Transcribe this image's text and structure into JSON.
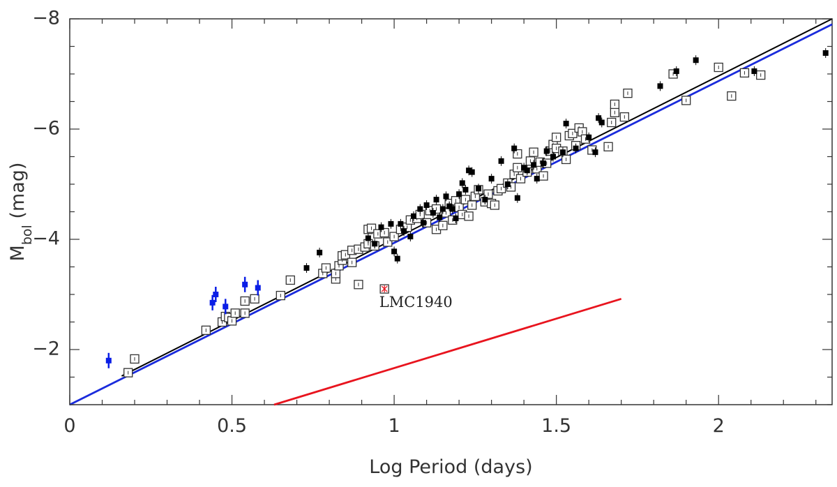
{
  "chart_data": {
    "type": "scatter",
    "title": "",
    "xlabel": "Log Period (days)",
    "ylabel": {
      "main": "M",
      "sub": "bol",
      "unit": " (mag)"
    },
    "xlim": [
      0,
      2.35
    ],
    "ylim": [
      -1,
      -8
    ],
    "y_inverted": true,
    "grid": false,
    "x_ticks": [
      {
        "value": 0,
        "label": "0"
      },
      {
        "value": 0.5,
        "label": "0.5"
      },
      {
        "value": 1,
        "label": "1"
      },
      {
        "value": 1.5,
        "label": "1.5"
      },
      {
        "value": 2,
        "label": "2"
      }
    ],
    "y_ticks": [
      {
        "value": -2,
        "label": "−2"
      },
      {
        "value": -4,
        "label": "−4"
      },
      {
        "value": -6,
        "label": "−6"
      },
      {
        "value": -8,
        "label": "−8"
      }
    ],
    "colors": {
      "open": "#333333",
      "filled": "#000000",
      "blue": "#0a1ee6",
      "red": "#e8141e",
      "black_line": "#000000",
      "blue_line": "#1a2bdc",
      "axis": "#333333"
    },
    "series": [
      {
        "marker": "open-square",
        "points": [
          [
            0.18,
            -1.58
          ],
          [
            0.2,
            -1.83
          ],
          [
            0.42,
            -2.35
          ],
          [
            0.47,
            -2.5
          ],
          [
            0.48,
            -2.6
          ],
          [
            0.49,
            -2.58
          ],
          [
            0.5,
            -2.52
          ],
          [
            0.51,
            -2.66
          ],
          [
            0.54,
            -2.66
          ],
          [
            0.54,
            -2.88
          ],
          [
            0.57,
            -2.92
          ],
          [
            0.65,
            -2.98
          ],
          [
            0.68,
            -3.26
          ],
          [
            0.78,
            -3.38
          ],
          [
            0.79,
            -3.48
          ],
          [
            0.82,
            -3.28
          ],
          [
            0.82,
            -3.38
          ],
          [
            0.83,
            -3.52
          ],
          [
            0.84,
            -3.62
          ],
          [
            0.84,
            -3.7
          ],
          [
            0.85,
            -3.72
          ],
          [
            0.87,
            -3.58
          ],
          [
            0.87,
            -3.8
          ],
          [
            0.89,
            -3.82
          ],
          [
            0.89,
            -3.18
          ],
          [
            0.91,
            -3.86
          ],
          [
            0.92,
            -3.92
          ],
          [
            0.92,
            -4.18
          ],
          [
            0.93,
            -4.2
          ],
          [
            0.94,
            -3.88
          ],
          [
            0.95,
            -4.1
          ],
          [
            0.97,
            -4.12
          ],
          [
            0.98,
            -3.95
          ],
          [
            1.0,
            -4.05
          ],
          [
            1.02,
            -4.18
          ],
          [
            1.04,
            -4.22
          ],
          [
            1.05,
            -4.35
          ],
          [
            1.07,
            -4.38
          ],
          [
            1.08,
            -4.45
          ],
          [
            1.1,
            -4.3
          ],
          [
            1.11,
            -4.52
          ],
          [
            1.13,
            -4.55
          ],
          [
            1.13,
            -4.18
          ],
          [
            1.15,
            -4.25
          ],
          [
            1.16,
            -4.48
          ],
          [
            1.17,
            -4.65
          ],
          [
            1.18,
            -4.35
          ],
          [
            1.19,
            -4.7
          ],
          [
            1.2,
            -4.58
          ],
          [
            1.21,
            -4.45
          ],
          [
            1.22,
            -4.72
          ],
          [
            1.23,
            -4.42
          ],
          [
            1.24,
            -4.62
          ],
          [
            1.25,
            -4.78
          ],
          [
            1.26,
            -4.9
          ],
          [
            1.28,
            -4.68
          ],
          [
            1.29,
            -4.82
          ],
          [
            1.3,
            -4.65
          ],
          [
            1.31,
            -4.62
          ],
          [
            1.32,
            -4.88
          ],
          [
            1.33,
            -4.92
          ],
          [
            1.35,
            -5.02
          ],
          [
            1.36,
            -4.95
          ],
          [
            1.37,
            -5.18
          ],
          [
            1.38,
            -5.3
          ],
          [
            1.38,
            -5.55
          ],
          [
            1.39,
            -5.1
          ],
          [
            1.41,
            -5.22
          ],
          [
            1.42,
            -5.42
          ],
          [
            1.43,
            -5.58
          ],
          [
            1.44,
            -5.28
          ],
          [
            1.45,
            -5.4
          ],
          [
            1.46,
            -5.15
          ],
          [
            1.47,
            -5.38
          ],
          [
            1.48,
            -5.6
          ],
          [
            1.49,
            -5.72
          ],
          [
            1.5,
            -5.65
          ],
          [
            1.5,
            -5.85
          ],
          [
            1.52,
            -5.6
          ],
          [
            1.53,
            -5.45
          ],
          [
            1.54,
            -5.88
          ],
          [
            1.55,
            -5.92
          ],
          [
            1.56,
            -5.7
          ],
          [
            1.57,
            -6.02
          ],
          [
            1.58,
            -5.95
          ],
          [
            1.59,
            -5.82
          ],
          [
            1.61,
            -5.62
          ],
          [
            1.66,
            -5.68
          ],
          [
            1.67,
            -6.12
          ],
          [
            1.68,
            -6.3
          ],
          [
            1.68,
            -6.45
          ],
          [
            1.71,
            -6.22
          ],
          [
            1.72,
            -6.65
          ],
          [
            1.86,
            -7.0
          ],
          [
            1.9,
            -6.52
          ],
          [
            2.0,
            -7.12
          ],
          [
            2.04,
            -6.6
          ],
          [
            2.08,
            -7.02
          ],
          [
            2.13,
            -6.98
          ]
        ]
      },
      {
        "marker": "filled-square",
        "points": [
          [
            0.73,
            -3.48
          ],
          [
            0.77,
            -3.76
          ],
          [
            0.92,
            -4.02
          ],
          [
            0.94,
            -3.92
          ],
          [
            0.96,
            -4.22
          ],
          [
            0.99,
            -4.28
          ],
          [
            1.0,
            -3.78
          ],
          [
            1.01,
            -3.65
          ],
          [
            1.02,
            -4.28
          ],
          [
            1.03,
            -4.15
          ],
          [
            1.05,
            -4.05
          ],
          [
            1.06,
            -4.42
          ],
          [
            1.08,
            -4.55
          ],
          [
            1.09,
            -4.3
          ],
          [
            1.1,
            -4.62
          ],
          [
            1.12,
            -4.48
          ],
          [
            1.13,
            -4.72
          ],
          [
            1.14,
            -4.4
          ],
          [
            1.15,
            -4.55
          ],
          [
            1.16,
            -4.78
          ],
          [
            1.17,
            -4.6
          ],
          [
            1.18,
            -4.55
          ],
          [
            1.19,
            -4.38
          ],
          [
            1.2,
            -4.82
          ],
          [
            1.21,
            -5.02
          ],
          [
            1.22,
            -4.9
          ],
          [
            1.23,
            -5.25
          ],
          [
            1.24,
            -5.22
          ],
          [
            1.26,
            -4.92
          ],
          [
            1.28,
            -4.72
          ],
          [
            1.3,
            -5.1
          ],
          [
            1.33,
            -5.42
          ],
          [
            1.35,
            -5.0
          ],
          [
            1.37,
            -5.65
          ],
          [
            1.38,
            -4.75
          ],
          [
            1.4,
            -5.3
          ],
          [
            1.41,
            -5.25
          ],
          [
            1.43,
            -5.35
          ],
          [
            1.44,
            -5.1
          ],
          [
            1.46,
            -5.38
          ],
          [
            1.47,
            -5.6
          ],
          [
            1.49,
            -5.5
          ],
          [
            1.52,
            -5.58
          ],
          [
            1.53,
            -6.1
          ],
          [
            1.56,
            -5.65
          ],
          [
            1.6,
            -5.85
          ],
          [
            1.62,
            -5.58
          ],
          [
            1.63,
            -6.2
          ],
          [
            1.64,
            -6.12
          ],
          [
            1.82,
            -6.78
          ],
          [
            1.87,
            -7.05
          ],
          [
            1.93,
            -7.25
          ],
          [
            2.11,
            -7.05
          ],
          [
            2.33,
            -7.38
          ]
        ]
      },
      {
        "marker": "blue-filled",
        "points": [
          [
            0.12,
            -1.8
          ],
          [
            0.44,
            -2.85
          ],
          [
            0.45,
            -3.0
          ],
          [
            0.48,
            -2.78
          ],
          [
            0.54,
            -3.18
          ],
          [
            0.58,
            -3.12
          ]
        ]
      },
      {
        "marker": "red-star-open",
        "points": [
          [
            0.97,
            -3.1
          ]
        ]
      }
    ],
    "lines": [
      {
        "name_hint": "black",
        "from": [
          0.16,
          -1.52
        ],
        "to": [
          2.35,
          -8.0
        ]
      },
      {
        "name_hint": "blue",
        "from": [
          0.0,
          -1.0
        ],
        "to": [
          2.35,
          -7.9
        ]
      },
      {
        "name_hint": "red",
        "from": [
          0.63,
          -1.0
        ],
        "to": [
          1.7,
          -2.92
        ]
      }
    ],
    "annotations": [
      {
        "text": "LMC1940",
        "x": 0.98,
        "y": -2.8
      }
    ]
  }
}
